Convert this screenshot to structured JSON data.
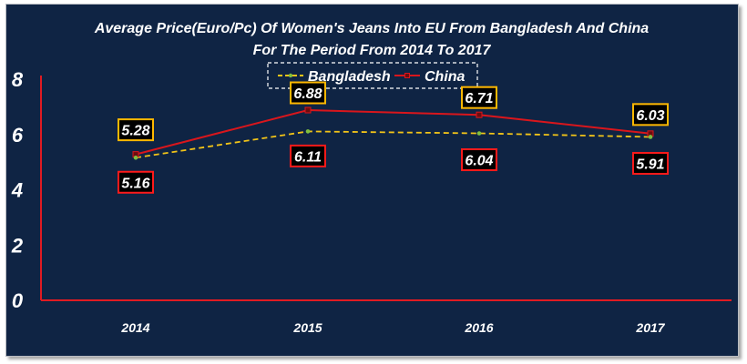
{
  "chart_data": {
    "type": "line",
    "title": "Average Price(Euro/Pc) Of Women's Jeans Into EU From Bangladesh And China",
    "subtitle": "For The Period From 2014 To 2017",
    "categories": [
      "2014",
      "2015",
      "2016",
      "2017"
    ],
    "ylim": [
      0,
      8
    ],
    "yticks": [
      "0",
      "2",
      "4",
      "6",
      "8"
    ],
    "grid": false,
    "legend_position": "top",
    "series": [
      {
        "name": "Bangladesh",
        "values": [
          5.16,
          6.11,
          6.04,
          5.91
        ],
        "color": "#f2c418",
        "line_style": "dashed",
        "label_border": "#ff1a1a"
      },
      {
        "name": "China",
        "values": [
          5.28,
          6.88,
          6.71,
          6.03
        ],
        "color": "#d9161c",
        "line_style": "solid",
        "label_border": "#ffb800"
      }
    ],
    "data_labels": {
      "Bangladesh": [
        "5.16",
        "6.11",
        "6.04",
        "5.91"
      ],
      "China": [
        "5.28",
        "6.88",
        "6.71",
        "6.03"
      ]
    },
    "colors": {
      "background": "#0f2444",
      "axis": "#e01b22",
      "text": "#ffffff"
    }
  }
}
